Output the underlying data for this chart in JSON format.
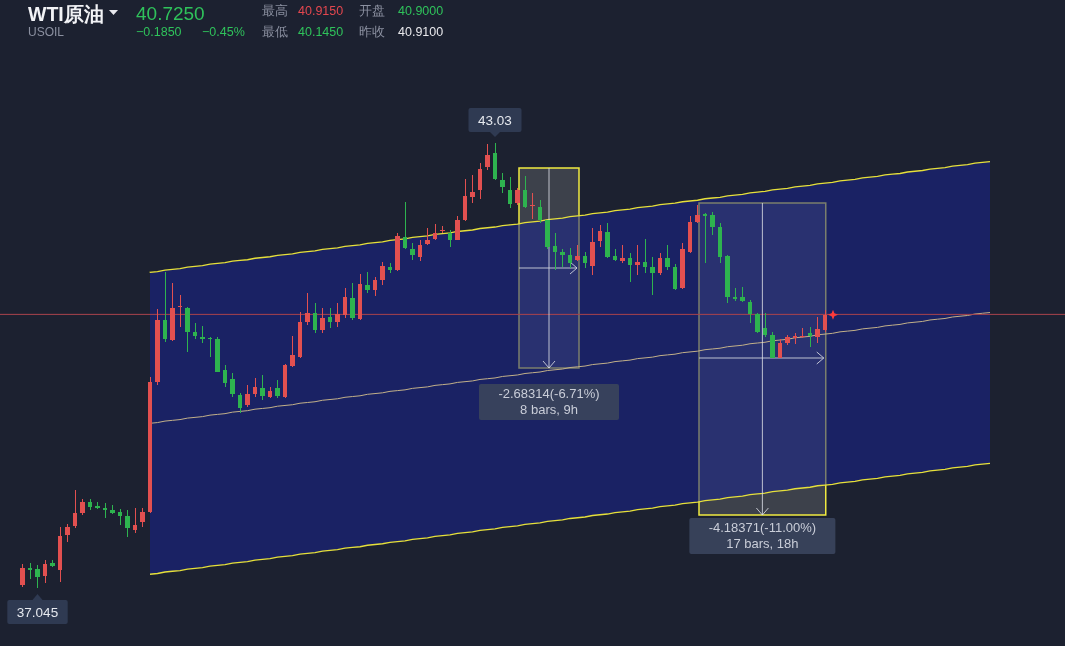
{
  "chart_data": {
    "type": "candlestick",
    "title": "WTI原油",
    "subtitle": "USOIL",
    "categories": [
      null,
      null,
      null,
      null,
      null,
      null,
      null,
      null,
      null,
      null,
      null,
      null,
      null,
      null,
      null,
      null,
      null,
      null,
      null,
      null,
      null,
      null,
      null,
      null,
      null,
      null,
      null,
      null,
      null,
      null,
      null,
      null,
      null,
      null,
      null,
      null,
      null,
      null,
      null,
      null,
      null,
      null,
      null,
      null,
      null,
      null,
      null,
      null,
      null,
      null,
      null,
      null,
      null,
      null,
      null,
      null,
      null,
      null,
      null,
      null,
      null,
      null,
      null,
      null,
      null,
      null,
      null,
      null,
      null,
      null,
      null,
      null,
      null,
      null,
      null,
      null,
      null,
      null,
      null,
      null,
      null,
      null,
      null,
      null,
      null,
      null,
      null,
      null,
      null,
      null,
      null,
      null,
      null,
      null,
      null,
      null,
      null,
      null,
      null,
      null,
      null,
      null,
      null,
      null,
      null,
      null,
      null,
      null,
      null,
      null,
      null,
      null,
      null,
      null,
      null,
      null,
      null,
      null,
      null,
      null,
      null,
      null,
      null,
      null,
      null,
      null,
      null,
      null,
      null,
      null
    ],
    "ohlc": [
      [
        37.08,
        37.37,
        37.06,
        37.32
      ],
      [
        37.32,
        37.38,
        37.17,
        37.29
      ],
      [
        37.3,
        37.36,
        37.045,
        37.19
      ],
      [
        37.21,
        37.42,
        37.11,
        37.37
      ],
      [
        37.38,
        37.42,
        37.33,
        37.34
      ],
      [
        37.29,
        37.87,
        37.13,
        37.74
      ],
      [
        37.76,
        37.91,
        37.67,
        37.87
      ],
      [
        37.88,
        38.36,
        37.85,
        38.05
      ],
      [
        38.05,
        38.24,
        38.03,
        38.2
      ],
      [
        38.2,
        38.24,
        38.09,
        38.13
      ],
      [
        38.15,
        38.2,
        38.11,
        38.12
      ],
      [
        38.12,
        38.19,
        37.99,
        38.09
      ],
      [
        38.09,
        38.16,
        38.04,
        38.05
      ],
      [
        38.07,
        38.11,
        37.89,
        38.01
      ],
      [
        38.01,
        38.09,
        37.73,
        37.85
      ],
      [
        37.83,
        38.12,
        37.79,
        37.89
      ],
      [
        37.93,
        38.12,
        37.87,
        38.07
      ],
      [
        38.07,
        39.88,
        38.05,
        39.82
      ],
      [
        39.82,
        40.8,
        39.78,
        40.65
      ],
      [
        40.65,
        41.3,
        40.35,
        40.39
      ],
      [
        40.38,
        41.15,
        40.37,
        40.81
      ],
      [
        40.83,
        40.99,
        40.56,
        40.84
      ],
      [
        40.81,
        40.82,
        40.22,
        40.49
      ],
      [
        40.49,
        40.61,
        40.39,
        40.43
      ],
      [
        40.42,
        40.57,
        40.34,
        40.39
      ],
      [
        40.41,
        40.42,
        40.15,
        40.4
      ],
      [
        40.39,
        40.42,
        39.95,
        39.95
      ],
      [
        39.98,
        40.04,
        39.75,
        39.8
      ],
      [
        39.86,
        39.94,
        39.61,
        39.65
      ],
      [
        39.64,
        39.67,
        39.4,
        39.47
      ],
      [
        39.51,
        39.78,
        39.48,
        39.65
      ],
      [
        39.65,
        39.87,
        39.61,
        39.75
      ],
      [
        39.73,
        39.91,
        39.57,
        39.63
      ],
      [
        39.61,
        39.75,
        39.6,
        39.7
      ],
      [
        39.73,
        39.84,
        39.6,
        39.63
      ],
      [
        39.61,
        40.06,
        39.6,
        40.04
      ],
      [
        40.03,
        40.43,
        40.02,
        40.18
      ],
      [
        40.15,
        40.76,
        40.14,
        40.62
      ],
      [
        40.62,
        41.01,
        40.58,
        40.74
      ],
      [
        40.74,
        40.88,
        40.47,
        40.52
      ],
      [
        40.52,
        40.81,
        40.47,
        40.68
      ],
      [
        40.69,
        40.81,
        40.54,
        40.62
      ],
      [
        40.62,
        40.88,
        40.56,
        40.73
      ],
      [
        40.72,
        41.08,
        40.68,
        40.96
      ],
      [
        40.95,
        41.15,
        40.65,
        40.68
      ],
      [
        40.66,
        41.27,
        40.65,
        41.13
      ],
      [
        41.12,
        41.3,
        41.01,
        41.05
      ],
      [
        41.05,
        41.23,
        40.97,
        41.19
      ],
      [
        41.19,
        41.43,
        41.12,
        41.38
      ],
      [
        41.36,
        41.42,
        41.28,
        41.32
      ],
      [
        41.32,
        41.82,
        41.31,
        41.78
      ],
      [
        41.77,
        42.24,
        41.6,
        41.62
      ],
      [
        41.6,
        41.69,
        41.46,
        41.52
      ],
      [
        41.5,
        41.73,
        41.44,
        41.66
      ],
      [
        41.67,
        41.89,
        41.66,
        41.73
      ],
      [
        41.74,
        41.94,
        41.73,
        41.82
      ],
      [
        41.85,
        41.91,
        41.82,
        41.86
      ],
      [
        41.82,
        41.86,
        41.63,
        41.73
      ],
      [
        41.73,
        42.05,
        41.72,
        41.99
      ],
      [
        41.99,
        42.55,
        41.98,
        42.32
      ],
      [
        42.3,
        42.6,
        42.22,
        42.37
      ],
      [
        42.4,
        42.76,
        42.28,
        42.68
      ],
      [
        42.71,
        43.02,
        42.67,
        42.87
      ],
      [
        42.9,
        43.03,
        42.53,
        42.55
      ],
      [
        42.53,
        42.63,
        42.36,
        42.44
      ],
      [
        42.4,
        42.57,
        42.16,
        42.21
      ],
      [
        42.22,
        42.42,
        42.2,
        42.4
      ],
      [
        42.4,
        42.59,
        42.16,
        42.17
      ],
      [
        42.18,
        42.36,
        42.01,
        42.2
      ],
      [
        42.17,
        42.26,
        41.95,
        41.99
      ],
      [
        41.99,
        42.0,
        41.61,
        41.63
      ],
      [
        41.65,
        41.82,
        41.32,
        41.56
      ],
      [
        41.56,
        41.6,
        41.36,
        41.52
      ],
      [
        41.52,
        41.62,
        41.35,
        41.42
      ],
      [
        41.46,
        41.66,
        41.44,
        41.51
      ],
      [
        41.51,
        41.56,
        41.35,
        41.42
      ],
      [
        41.38,
        41.89,
        41.25,
        41.7
      ],
      [
        41.71,
        41.93,
        41.63,
        41.85
      ],
      [
        41.83,
        41.95,
        41.49,
        41.5
      ],
      [
        41.51,
        41.6,
        41.44,
        41.46
      ],
      [
        41.44,
        41.66,
        41.42,
        41.48
      ],
      [
        41.48,
        41.55,
        41.16,
        41.39
      ],
      [
        41.39,
        41.66,
        41.25,
        41.43
      ],
      [
        41.43,
        41.74,
        41.28,
        41.36
      ],
      [
        41.36,
        41.5,
        40.99,
        41.28
      ],
      [
        41.28,
        41.55,
        41.25,
        41.48
      ],
      [
        41.48,
        41.66,
        41.32,
        41.36
      ],
      [
        41.36,
        41.4,
        41.05,
        41.07
      ],
      [
        41.08,
        41.69,
        41.07,
        41.6
      ],
      [
        41.56,
        42.05,
        41.55,
        41.97
      ],
      [
        41.97,
        42.2,
        41.95,
        42.06
      ],
      [
        42.08,
        42.09,
        41.42,
        42.05
      ],
      [
        42.06,
        42.1,
        41.79,
        41.9
      ],
      [
        41.9,
        41.95,
        41.42,
        41.5
      ],
      [
        41.51,
        41.52,
        40.88,
        40.96
      ],
      [
        40.96,
        41.08,
        40.9,
        40.93
      ],
      [
        40.96,
        41.09,
        40.89,
        40.9
      ],
      [
        40.89,
        40.92,
        40.61,
        40.73
      ],
      [
        40.73,
        40.74,
        40.47,
        40.49
      ],
      [
        40.54,
        40.74,
        40.42,
        40.45
      ],
      [
        40.45,
        40.49,
        40.14,
        40.14
      ],
      [
        40.14,
        40.39,
        40.14,
        40.34
      ],
      [
        40.34,
        40.45,
        40.31,
        40.42
      ],
      [
        40.41,
        40.47,
        40.33,
        40.43
      ],
      [
        40.43,
        40.54,
        40.41,
        40.44
      ],
      [
        40.47,
        40.56,
        40.29,
        40.43
      ],
      [
        40.42,
        40.69,
        40.34,
        40.53
      ],
      [
        40.51,
        40.78,
        40.49,
        40.72
      ],
      null,
      null,
      null,
      null,
      null,
      null,
      null,
      null,
      null,
      null,
      null,
      null,
      null,
      null,
      null,
      null,
      null,
      null,
      null,
      null,
      null,
      null
    ],
    "colors": [
      "#e25050",
      "#2eb34f",
      "#2eb34f",
      "#e25050",
      "#2eb34f",
      "#e25050",
      "#e25050",
      "#e25050",
      "#e25050",
      "#2eb34f",
      "#2eb34f",
      "#2eb34f",
      "#2eb34f",
      "#2eb34f",
      "#2eb34f",
      "#e25050",
      "#e25050",
      "#e25050",
      "#e25050",
      "#2eb34f",
      "#e25050",
      "#e25050",
      "#2eb34f",
      "#2eb34f",
      "#2eb34f",
      "#2eb34f",
      "#2eb34f",
      "#2eb34f",
      "#2eb34f",
      "#2eb34f",
      "#e25050",
      "#e25050",
      "#2eb34f",
      "#e25050",
      "#2eb34f",
      "#e25050",
      "#e25050",
      "#e25050",
      "#e25050",
      "#2eb34f",
      "#e25050",
      "#2eb34f",
      "#e25050",
      "#e25050",
      "#2eb34f",
      "#e25050",
      "#2eb34f",
      "#e25050",
      "#e25050",
      "#2eb34f",
      "#e25050",
      "#2eb34f",
      "#2eb34f",
      "#e25050",
      "#e25050",
      "#e25050",
      "#e25050",
      "#2eb34f",
      "#e25050",
      "#e25050",
      "#e25050",
      "#e25050",
      "#e25050",
      "#2eb34f",
      "#2eb34f",
      "#2eb34f",
      "#e25050",
      "#2eb34f",
      "#e25050",
      "#2eb34f",
      "#2eb34f",
      "#2eb34f",
      "#2eb34f",
      "#2eb34f",
      "#e25050",
      "#2eb34f",
      "#e25050",
      "#e25050",
      "#2eb34f",
      "#2eb34f",
      "#e25050",
      "#2eb34f",
      "#e25050",
      "#2eb34f",
      "#2eb34f",
      "#e25050",
      "#2eb34f",
      "#2eb34f",
      "#e25050",
      "#e25050",
      "#e25050",
      "#2eb34f",
      "#2eb34f",
      "#2eb34f",
      "#2eb34f",
      "#2eb34f",
      "#2eb34f",
      "#2eb34f",
      "#2eb34f",
      "#2eb34f",
      "#2eb34f",
      "#e25050",
      "#e25050",
      "#e25050",
      "#e25050",
      "#2eb34f",
      "#e25050",
      "#e25050",
      null,
      null,
      null,
      null,
      null,
      null,
      null,
      null,
      null,
      null,
      null,
      null,
      null,
      null,
      null,
      null,
      null,
      null,
      null,
      null,
      null,
      null
    ],
    "series": [
      {
        "type": "line",
        "color": "#c2b089",
        "values": [
          null,
          null,
          null,
          null,
          null,
          null,
          null,
          null,
          null,
          null,
          null,
          null,
          null,
          null,
          null,
          null,
          null,
          39.26,
          39.27,
          39.29,
          39.3,
          39.31,
          39.33,
          39.34,
          39.35,
          39.37,
          39.38,
          39.39,
          39.41,
          39.42,
          39.43,
          39.45,
          39.46,
          39.47,
          39.49,
          39.5,
          39.51,
          39.53,
          39.54,
          39.55,
          39.57,
          39.58,
          39.59,
          39.61,
          39.62,
          39.63,
          39.65,
          39.66,
          39.67,
          39.69,
          39.7,
          39.71,
          39.73,
          39.74,
          39.75,
          39.77,
          39.78,
          39.79,
          39.81,
          39.82,
          39.83,
          39.85,
          39.86,
          39.87,
          39.89,
          39.9,
          39.91,
          39.93,
          39.94,
          39.95,
          39.97,
          39.98,
          39.99,
          40.01,
          40.02,
          40.03,
          40.05,
          40.06,
          40.07,
          40.09,
          40.1,
          40.11,
          40.13,
          40.14,
          40.15,
          40.17,
          40.18,
          40.19,
          40.21,
          40.22,
          40.23,
          40.25,
          40.26,
          40.27,
          40.29,
          40.3,
          40.31,
          40.33,
          40.34,
          40.35,
          40.37,
          40.38,
          40.39,
          40.41,
          40.42,
          40.43,
          40.45,
          40.46,
          40.47,
          40.49,
          40.5,
          40.51,
          40.53,
          40.54,
          40.55,
          40.57,
          40.58,
          40.59,
          40.61,
          40.62,
          40.63,
          40.65,
          40.66,
          40.67,
          40.69,
          40.7,
          40.71,
          40.73,
          40.74,
          40.75
        ],
        "upper": [
          null,
          null,
          null,
          null,
          null,
          null,
          null,
          null,
          null,
          null,
          null,
          null,
          null,
          null,
          null,
          null,
          null,
          41.29,
          41.3,
          41.32,
          41.33,
          41.34,
          41.36,
          41.37,
          41.38,
          41.4,
          41.41,
          41.42,
          41.44,
          41.45,
          41.46,
          41.48,
          41.49,
          41.5,
          41.52,
          41.53,
          41.54,
          41.56,
          41.57,
          41.58,
          41.6,
          41.61,
          41.62,
          41.64,
          41.65,
          41.66,
          41.68,
          41.69,
          41.7,
          41.72,
          41.73,
          41.74,
          41.76,
          41.77,
          41.78,
          41.8,
          41.81,
          41.82,
          41.84,
          41.85,
          41.86,
          41.88,
          41.89,
          41.9,
          41.92,
          41.93,
          41.94,
          41.96,
          41.97,
          41.98,
          42.0,
          42.01,
          42.02,
          42.04,
          42.05,
          42.06,
          42.08,
          42.09,
          42.1,
          42.12,
          42.13,
          42.14,
          42.16,
          42.17,
          42.18,
          42.2,
          42.21,
          42.22,
          42.24,
          42.25,
          42.26,
          42.28,
          42.29,
          42.3,
          42.32,
          42.33,
          42.34,
          42.36,
          42.37,
          42.38,
          42.4,
          42.41,
          42.42,
          42.44,
          42.45,
          42.46,
          42.48,
          42.49,
          42.5,
          42.52,
          42.53,
          42.54,
          42.56,
          42.57,
          42.58,
          42.6,
          42.61,
          42.62,
          42.64,
          42.65,
          42.66,
          42.68,
          42.69,
          42.7,
          42.72,
          42.73,
          42.74,
          42.76,
          42.77,
          42.78
        ],
        "lower": [
          null,
          null,
          null,
          null,
          null,
          null,
          null,
          null,
          null,
          null,
          null,
          null,
          null,
          null,
          null,
          null,
          null,
          37.23,
          37.24,
          37.26,
          37.27,
          37.28,
          37.3,
          37.31,
          37.32,
          37.34,
          37.35,
          37.36,
          37.38,
          37.39,
          37.4,
          37.42,
          37.43,
          37.44,
          37.46,
          37.47,
          37.48,
          37.5,
          37.51,
          37.52,
          37.54,
          37.55,
          37.56,
          37.58,
          37.59,
          37.6,
          37.62,
          37.63,
          37.64,
          37.66,
          37.67,
          37.68,
          37.7,
          37.71,
          37.72,
          37.74,
          37.75,
          37.76,
          37.78,
          37.79,
          37.8,
          37.82,
          37.83,
          37.84,
          37.86,
          37.87,
          37.88,
          37.9,
          37.91,
          37.92,
          37.94,
          37.95,
          37.96,
          37.98,
          37.99,
          38.0,
          38.02,
          38.03,
          38.04,
          38.06,
          38.07,
          38.08,
          38.1,
          38.11,
          38.12,
          38.14,
          38.15,
          38.16,
          38.18,
          38.19,
          38.2,
          38.22,
          38.23,
          38.24,
          38.26,
          38.27,
          38.28,
          38.3,
          38.31,
          38.32,
          38.34,
          38.35,
          38.36,
          38.38,
          38.39,
          38.4,
          38.42,
          38.43,
          38.44,
          38.46,
          38.47,
          38.48,
          38.5,
          38.51,
          38.52,
          38.54,
          38.55,
          38.56,
          38.58,
          38.59,
          38.6,
          38.62,
          38.63,
          38.64,
          38.66,
          38.67,
          38.68,
          38.7,
          38.71,
          38.72
        ]
      }
    ],
    "ref_lines": [
      {
        "axis": "y",
        "value": 40.725,
        "color": "#a9424c"
      }
    ],
    "annotations": [
      "40.7250",
      "−0.1850",
      "−0.45%",
      "最高",
      "40.9150",
      "开盘",
      "40.9000",
      "最低",
      "40.1450",
      "昨收",
      "40.9100",
      {
        "text": "43.03",
        "y": 43.03
      },
      {
        "text": "37.045",
        "y": 37.045
      },
      "-2.68314(-6.71%)",
      "8 bars, 9h",
      "-4.18371(-11.00%)",
      "17 bars, 18h"
    ]
  }
}
